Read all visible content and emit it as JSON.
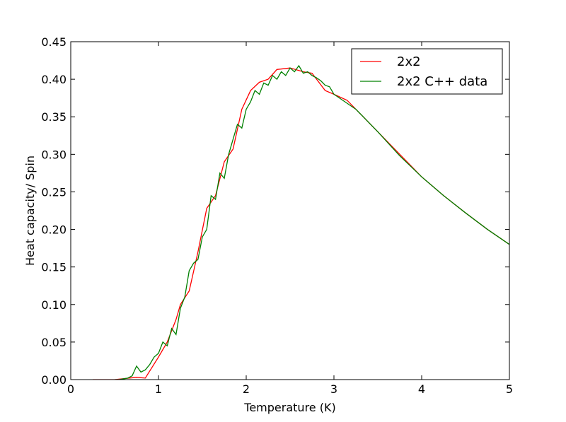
{
  "chart_data": {
    "type": "line",
    "xlabel": "Temperature (K)",
    "ylabel": "Heat capacity/ Spin",
    "xlim": [
      0,
      5
    ],
    "xticks": [
      0,
      1,
      2,
      3,
      4,
      5
    ],
    "ylim": [
      0,
      0.45
    ],
    "yticks": [
      {
        "value": 0,
        "label": "0.00"
      },
      {
        "value": 0.05,
        "label": "0.05"
      },
      {
        "value": 0.1,
        "label": "0.10"
      },
      {
        "value": 0.15,
        "label": "0.15"
      },
      {
        "value": 0.2,
        "label": "0.20"
      },
      {
        "value": 0.25,
        "label": "0.25"
      },
      {
        "value": 0.3,
        "label": "0.30"
      },
      {
        "value": 0.35,
        "label": "0.35"
      },
      {
        "value": 0.4,
        "label": "0.40"
      },
      {
        "value": 0.45,
        "label": "0.45"
      }
    ],
    "legend": "upper right",
    "series": [
      {
        "name": "2x2",
        "color": "#ff0000",
        "x": [
          0.25,
          0.5,
          0.75,
          0.85,
          1.0,
          1.1,
          1.2,
          1.25,
          1.35,
          1.45,
          1.55,
          1.65,
          1.75,
          1.85,
          1.95,
          2.05,
          2.15,
          2.25,
          2.35,
          2.5,
          2.65,
          2.75,
          2.9,
          3.0,
          3.15,
          3.25,
          3.5,
          3.75,
          4.0,
          4.25,
          4.5,
          4.75,
          5.0
        ],
        "values": [
          0,
          0,
          0.003,
          0.002,
          0.03,
          0.05,
          0.08,
          0.1,
          0.118,
          0.17,
          0.228,
          0.245,
          0.29,
          0.307,
          0.36,
          0.385,
          0.396,
          0.4,
          0.413,
          0.415,
          0.41,
          0.408,
          0.385,
          0.38,
          0.372,
          0.36,
          0.33,
          0.3,
          0.27,
          0.245,
          0.222,
          0.2,
          0.18
        ]
      },
      {
        "name": "2x2 C++ data",
        "color": "#008000",
        "x": [
          0.5,
          0.55,
          0.6,
          0.65,
          0.7,
          0.75,
          0.8,
          0.85,
          0.9,
          0.95,
          1.0,
          1.05,
          1.1,
          1.15,
          1.2,
          1.25,
          1.3,
          1.35,
          1.4,
          1.45,
          1.5,
          1.55,
          1.6,
          1.65,
          1.7,
          1.75,
          1.8,
          1.85,
          1.9,
          1.95,
          2.0,
          2.05,
          2.1,
          2.15,
          2.2,
          2.25,
          2.3,
          2.35,
          2.4,
          2.45,
          2.5,
          2.55,
          2.6,
          2.65,
          2.7,
          2.75,
          2.8,
          2.85,
          2.9,
          2.95,
          3.0,
          3.25,
          3.5,
          3.75,
          4.0,
          4.25,
          4.5,
          4.75,
          5.0
        ],
        "values": [
          0,
          0,
          0.001,
          0.002,
          0.005,
          0.018,
          0.01,
          0.013,
          0.02,
          0.03,
          0.035,
          0.05,
          0.045,
          0.068,
          0.06,
          0.095,
          0.11,
          0.145,
          0.155,
          0.16,
          0.19,
          0.2,
          0.245,
          0.24,
          0.275,
          0.268,
          0.3,
          0.32,
          0.34,
          0.335,
          0.36,
          0.37,
          0.385,
          0.38,
          0.395,
          0.392,
          0.405,
          0.4,
          0.41,
          0.405,
          0.415,
          0.41,
          0.418,
          0.408,
          0.41,
          0.405,
          0.402,
          0.398,
          0.392,
          0.39,
          0.38,
          0.36,
          0.33,
          0.298,
          0.27,
          0.245,
          0.222,
          0.2,
          0.18
        ]
      }
    ]
  }
}
